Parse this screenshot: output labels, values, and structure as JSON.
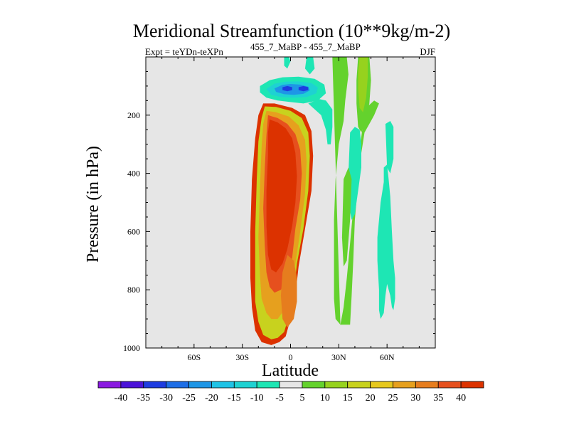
{
  "chart_data": {
    "type": "contour",
    "title": "Meridional Streamfunction (10**9kg/m-2)",
    "subtitle_left": "Expt = teYDn-teXPn",
    "subtitle_center": "455_7_MaBP - 455_7_MaBP",
    "subtitle_right": "DJF",
    "xlabel": "Latitude",
    "ylabel": "Pressure (in hPa)",
    "xlim": [
      -90,
      90
    ],
    "ylim": [
      1000,
      0
    ],
    "x_ticks": [
      {
        "value": -60,
        "label": "60S"
      },
      {
        "value": -30,
        "label": "30S"
      },
      {
        "value": 0,
        "label": "0"
      },
      {
        "value": 30,
        "label": "30N"
      },
      {
        "value": 60,
        "label": "60N"
      }
    ],
    "y_ticks": [
      {
        "value": 200,
        "label": "200"
      },
      {
        "value": 400,
        "label": "400"
      },
      {
        "value": 600,
        "label": "600"
      },
      {
        "value": 800,
        "label": "800"
      },
      {
        "value": 1000,
        "label": "1000"
      }
    ],
    "colorbar": {
      "labels": [
        "-40",
        "-35",
        "-30",
        "-25",
        "-20",
        "-15",
        "-10",
        "-5",
        "5",
        "10",
        "15",
        "20",
        "25",
        "30",
        "35",
        "40"
      ],
      "colors": [
        "#8a1ae0",
        "#4b12d8",
        "#1e3ce0",
        "#1e6ee6",
        "#1e96e6",
        "#1ec3e6",
        "#1ed2d2",
        "#1ee6b4",
        "#e6e6e6",
        "#64d22d",
        "#96d21e",
        "#c8d21e",
        "#e6c81e",
        "#e6a01e",
        "#e67d1e",
        "#e6501e",
        "#dc3200"
      ]
    },
    "background_color": "#e6e6e6",
    "regions": [
      {
        "name": "sh-positive-cell",
        "level": 40,
        "color": "#dc3200",
        "points": [
          [
            -17,
            160
          ],
          [
            -10,
            160
          ],
          [
            1,
            175
          ],
          [
            9,
            200
          ],
          [
            13,
            255
          ],
          [
            14,
            340
          ],
          [
            13,
            460
          ],
          [
            9,
            590
          ],
          [
            5,
            720
          ],
          [
            3,
            820
          ],
          [
            0,
            900
          ],
          [
            -3,
            960
          ],
          [
            -7,
            980
          ],
          [
            -12,
            990
          ],
          [
            -18,
            980
          ],
          [
            -22,
            940
          ],
          [
            -24,
            860
          ],
          [
            -25,
            760
          ],
          [
            -25,
            600
          ],
          [
            -24,
            420
          ],
          [
            -22,
            280
          ],
          [
            -20,
            200
          ]
        ]
      },
      {
        "name": "sh-positive-15",
        "level": 15,
        "color": "#c8d21e",
        "points": [
          [
            -16,
            170
          ],
          [
            -9,
            172
          ],
          [
            0,
            185
          ],
          [
            7,
            210
          ],
          [
            11,
            260
          ],
          [
            12,
            340
          ],
          [
            11,
            460
          ],
          [
            8,
            590
          ],
          [
            4,
            710
          ],
          [
            2,
            810
          ],
          [
            -1,
            890
          ],
          [
            -4,
            945
          ],
          [
            -8,
            965
          ],
          [
            -12,
            970
          ],
          [
            -17,
            955
          ],
          [
            -20,
            910
          ],
          [
            -22,
            840
          ],
          [
            -22,
            740
          ],
          [
            -22,
            600
          ],
          [
            -21,
            420
          ],
          [
            -20,
            290
          ],
          [
            -18,
            210
          ]
        ]
      },
      {
        "name": "sh-positive-25",
        "level": 25,
        "color": "#e6a01e",
        "points": [
          [
            -15,
            185
          ],
          [
            -9,
            190
          ],
          [
            -1,
            205
          ],
          [
            5,
            235
          ],
          [
            9,
            285
          ],
          [
            10,
            360
          ],
          [
            9,
            470
          ],
          [
            6,
            600
          ],
          [
            3,
            710
          ],
          [
            0,
            800
          ],
          [
            -4,
            870
          ],
          [
            -8,
            900
          ],
          [
            -12,
            900
          ],
          [
            -15,
            880
          ],
          [
            -18,
            830
          ],
          [
            -19,
            750
          ],
          [
            -20,
            620
          ],
          [
            -19,
            450
          ],
          [
            -18,
            310
          ],
          [
            -17,
            230
          ]
        ]
      },
      {
        "name": "sh-positive-35",
        "level": 35,
        "color": "#e6501e",
        "points": [
          [
            -14,
            200
          ],
          [
            -8,
            210
          ],
          [
            -2,
            230
          ],
          [
            3,
            265
          ],
          [
            6,
            320
          ],
          [
            7,
            400
          ],
          [
            6,
            490
          ],
          [
            3,
            590
          ],
          [
            1,
            690
          ],
          [
            -2,
            760
          ],
          [
            -6,
            800
          ],
          [
            -10,
            810
          ],
          [
            -13,
            790
          ],
          [
            -15,
            740
          ],
          [
            -16,
            650
          ],
          [
            -17,
            520
          ],
          [
            -16,
            380
          ],
          [
            -15,
            270
          ]
        ]
      },
      {
        "name": "sh-positive-40",
        "level": 40,
        "color": "#dc3200",
        "points": [
          [
            -13,
            215
          ],
          [
            -8,
            225
          ],
          [
            -3,
            245
          ],
          [
            1,
            280
          ],
          [
            3,
            330
          ],
          [
            4,
            410
          ],
          [
            3,
            500
          ],
          [
            1,
            580
          ],
          [
            -2,
            660
          ],
          [
            -5,
            710
          ],
          [
            -9,
            740
          ],
          [
            -12,
            730
          ],
          [
            -14,
            680
          ],
          [
            -15,
            580
          ],
          [
            -15,
            460
          ],
          [
            -14,
            340
          ],
          [
            -14,
            260
          ]
        ]
      },
      {
        "name": "sh-lower-positive-lobe",
        "level": 30,
        "color": "#e67d1e",
        "points": [
          [
            -2,
            680
          ],
          [
            2,
            700
          ],
          [
            4,
            760
          ],
          [
            4,
            840
          ],
          [
            2,
            900
          ],
          [
            -2,
            930
          ],
          [
            -5,
            900
          ],
          [
            -6,
            820
          ],
          [
            -5,
            740
          ]
        ]
      },
      {
        "name": "upper-negative-cell-5",
        "level": -5,
        "color": "#1ee6b4",
        "points": [
          [
            -19,
            100
          ],
          [
            -13,
            80
          ],
          [
            -5,
            70
          ],
          [
            5,
            68
          ],
          [
            15,
            75
          ],
          [
            21,
            95
          ],
          [
            22,
            125
          ],
          [
            17,
            150
          ],
          [
            8,
            160
          ],
          [
            0,
            155
          ],
          [
            -8,
            150
          ],
          [
            -15,
            140
          ],
          [
            -19,
            122
          ]
        ]
      },
      {
        "name": "upper-negative-cell-10",
        "level": -10,
        "color": "#1ed2d2",
        "points": [
          [
            -15,
            110
          ],
          [
            -10,
            92
          ],
          [
            -3,
            85
          ],
          [
            5,
            84
          ],
          [
            13,
            90
          ],
          [
            17,
            105
          ],
          [
            16,
            125
          ],
          [
            10,
            138
          ],
          [
            2,
            140
          ],
          [
            -6,
            138
          ],
          [
            -12,
            130
          ]
        ]
      },
      {
        "name": "upper-negative-cell-20",
        "level": -20,
        "color": "#1e96e6",
        "points": [
          [
            -10,
            108
          ],
          [
            -5,
            96
          ],
          [
            0,
            93
          ],
          [
            6,
            95
          ],
          [
            11,
            102
          ],
          [
            12,
            115
          ],
          [
            8,
            127
          ],
          [
            2,
            130
          ],
          [
            -4,
            128
          ],
          [
            -9,
            120
          ]
        ]
      },
      {
        "name": "upper-negative-cell-30a",
        "level": -30,
        "color": "#1e3ce0",
        "points": [
          [
            -5,
            104
          ],
          [
            -2,
            100
          ],
          [
            1,
            104
          ],
          [
            1,
            114
          ],
          [
            -2,
            118
          ],
          [
            -5,
            114
          ]
        ]
      },
      {
        "name": "upper-negative-cell-30b",
        "level": -30,
        "color": "#1e3ce0",
        "points": [
          [
            5,
            104
          ],
          [
            8,
            100
          ],
          [
            11,
            104
          ],
          [
            11,
            114
          ],
          [
            8,
            118
          ],
          [
            5,
            114
          ]
        ]
      },
      {
        "name": "upper-negative-strip",
        "level": -5,
        "color": "#1ee6b4",
        "points": [
          [
            -4,
            0
          ],
          [
            -1,
            0
          ],
          [
            0,
            15
          ],
          [
            -2,
            40
          ],
          [
            -4,
            30
          ]
        ]
      },
      {
        "name": "upper-negative-strip-2",
        "level": -5,
        "color": "#1ee6b4",
        "points": [
          [
            10,
            0
          ],
          [
            14,
            0
          ],
          [
            15,
            40
          ],
          [
            12,
            60
          ],
          [
            9,
            40
          ]
        ]
      },
      {
        "name": "tropical-strip-neg",
        "level": -5,
        "color": "#1ee6b4",
        "points": [
          [
            11,
            160
          ],
          [
            18,
            145
          ],
          [
            22,
            150
          ],
          [
            26,
            180
          ],
          [
            26,
            240
          ],
          [
            25,
            300
          ],
          [
            23,
            300
          ],
          [
            22,
            250
          ],
          [
            19,
            200
          ],
          [
            14,
            175
          ]
        ]
      },
      {
        "name": "nh-green-band",
        "level": 10,
        "color": "#64d22d",
        "points": [
          [
            26,
            0
          ],
          [
            35,
            0
          ],
          [
            36,
            60
          ],
          [
            34,
            150
          ],
          [
            33,
            220
          ],
          [
            30,
            300
          ],
          [
            28,
            420
          ],
          [
            27,
            560
          ],
          [
            27,
            700
          ],
          [
            27,
            830
          ],
          [
            28,
            900
          ],
          [
            31,
            920
          ],
          [
            33,
            860
          ],
          [
            35,
            760
          ],
          [
            37,
            640
          ],
          [
            39,
            520
          ],
          [
            41,
            420
          ],
          [
            43,
            320
          ],
          [
            45,
            230
          ],
          [
            48,
            170
          ],
          [
            52,
            150
          ],
          [
            55,
            160
          ],
          [
            52,
            200
          ],
          [
            50,
            220
          ],
          [
            46,
            260
          ],
          [
            44,
            330
          ],
          [
            42,
            430
          ],
          [
            40,
            560
          ],
          [
            39,
            700
          ],
          [
            38,
            820
          ],
          [
            37,
            920
          ],
          [
            31,
            920
          ]
        ]
      },
      {
        "name": "nh-green-upper",
        "level": 10,
        "color": "#64d22d",
        "points": [
          [
            42,
            0
          ],
          [
            49,
            0
          ],
          [
            50,
            80
          ],
          [
            49,
            160
          ],
          [
            47,
            210
          ],
          [
            44,
            260
          ],
          [
            42,
            240
          ],
          [
            41,
            160
          ],
          [
            41,
            80
          ]
        ]
      },
      {
        "name": "nh-lightgreen-upper",
        "level": 15,
        "color": "#96d21e",
        "points": [
          [
            43,
            0
          ],
          [
            48,
            0
          ],
          [
            48,
            70
          ],
          [
            47,
            140
          ],
          [
            45,
            190
          ],
          [
            43,
            175
          ],
          [
            42,
            110
          ],
          [
            42,
            50
          ]
        ]
      },
      {
        "name": "nh-teal-band",
        "level": -5,
        "color": "#1ee6b4",
        "points": [
          [
            58,
            380
          ],
          [
            58,
            430
          ],
          [
            56,
            500
          ],
          [
            55,
            560
          ],
          [
            54,
            620
          ],
          [
            54,
            700
          ],
          [
            55,
            800
          ],
          [
            55,
            870
          ],
          [
            56,
            900
          ],
          [
            58,
            880
          ],
          [
            59,
            820
          ],
          [
            60,
            780
          ],
          [
            62,
            820
          ],
          [
            63,
            860
          ],
          [
            64,
            870
          ],
          [
            65,
            830
          ],
          [
            65,
            760
          ],
          [
            64,
            700
          ],
          [
            63,
            600
          ],
          [
            62,
            480
          ],
          [
            61,
            420
          ],
          [
            60,
            370
          ]
        ]
      },
      {
        "name": "nh-teal-right-strip",
        "level": -5,
        "color": "#1ee6b4",
        "points": [
          [
            59,
            230
          ],
          [
            62,
            220
          ],
          [
            64,
            240
          ],
          [
            64,
            350
          ],
          [
            62,
            400
          ],
          [
            60,
            380
          ]
        ]
      },
      {
        "name": "nh-teal-mid-strip",
        "level": -5,
        "color": "#1ee6b4",
        "points": [
          [
            37,
            260
          ],
          [
            40,
            240
          ],
          [
            43,
            250
          ],
          [
            44,
            300
          ],
          [
            44,
            380
          ],
          [
            42,
            460
          ],
          [
            40,
            540
          ],
          [
            38,
            560
          ],
          [
            36,
            500
          ],
          [
            36,
            400
          ]
        ]
      },
      {
        "name": "nh-green-lower-strip",
        "level": 10,
        "color": "#64d22d",
        "points": [
          [
            33,
            420
          ],
          [
            36,
            380
          ],
          [
            38,
            420
          ],
          [
            37,
            560
          ],
          [
            35,
            700
          ],
          [
            33,
            720
          ],
          [
            32,
            620
          ]
        ]
      }
    ]
  }
}
